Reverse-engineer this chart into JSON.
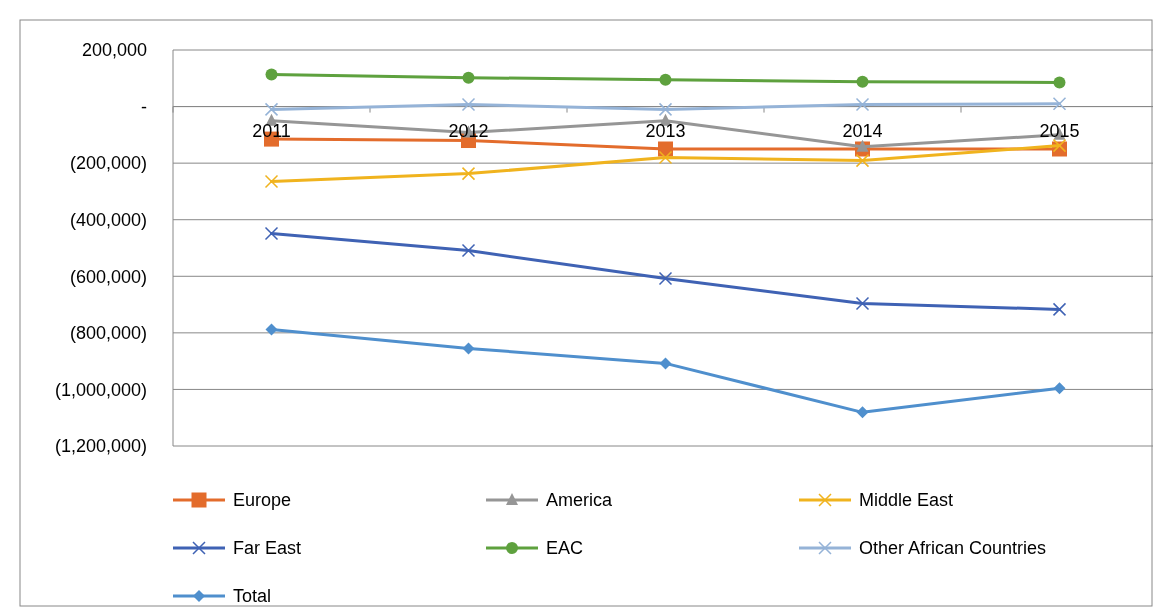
{
  "chart_data": {
    "type": "line",
    "categories": [
      "2011",
      "2012",
      "2013",
      "2014",
      "2015"
    ],
    "ylim": [
      -1200000,
      200000
    ],
    "yticks": [
      {
        "value": -1200000,
        "label": "(1,200,000)"
      },
      {
        "value": -1000000,
        "label": "(1,000,000)"
      },
      {
        "value": -800000,
        "label": "(800,000)"
      },
      {
        "value": -600000,
        "label": "(600,000)"
      },
      {
        "value": -400000,
        "label": "(400,000)"
      },
      {
        "value": -200000,
        "label": "(200,000)"
      },
      {
        "value": 0,
        "label": "-"
      },
      {
        "value": 200000,
        "label": "200,000"
      }
    ],
    "grid": "y",
    "legend": "bottom",
    "line_style": "solid",
    "series": [
      {
        "name": "Europe",
        "color": "#e36c2c",
        "marker": "square",
        "values": [
          -115000,
          -120000,
          -150000,
          -150000,
          -150000
        ]
      },
      {
        "name": "America",
        "color": "#969696",
        "marker": "triangle",
        "values": [
          -50000,
          -92000,
          -50000,
          -142000,
          -100000
        ]
      },
      {
        "name": "Middle East",
        "color": "#f0b31e",
        "marker": "cross",
        "values": [
          -265000,
          -237000,
          -180000,
          -191000,
          -138000
        ]
      },
      {
        "name": "Far East",
        "color": "#3f62b4",
        "marker": "cross",
        "values": [
          -449000,
          -509000,
          -608000,
          -696000,
          -717000
        ]
      },
      {
        "name": "EAC",
        "color": "#5ea13e",
        "marker": "circle",
        "values": [
          113000,
          102000,
          95000,
          88000,
          85000
        ]
      },
      {
        "name": "Other African Countries",
        "color": "#95b3d7",
        "marker": "cross",
        "values": [
          -10000,
          7000,
          -10000,
          7000,
          10000
        ]
      },
      {
        "name": "Total",
        "color": "#4f8fcd",
        "marker": "diamond",
        "values": [
          -788000,
          -855000,
          -908000,
          -1081000,
          -996000
        ]
      }
    ]
  }
}
